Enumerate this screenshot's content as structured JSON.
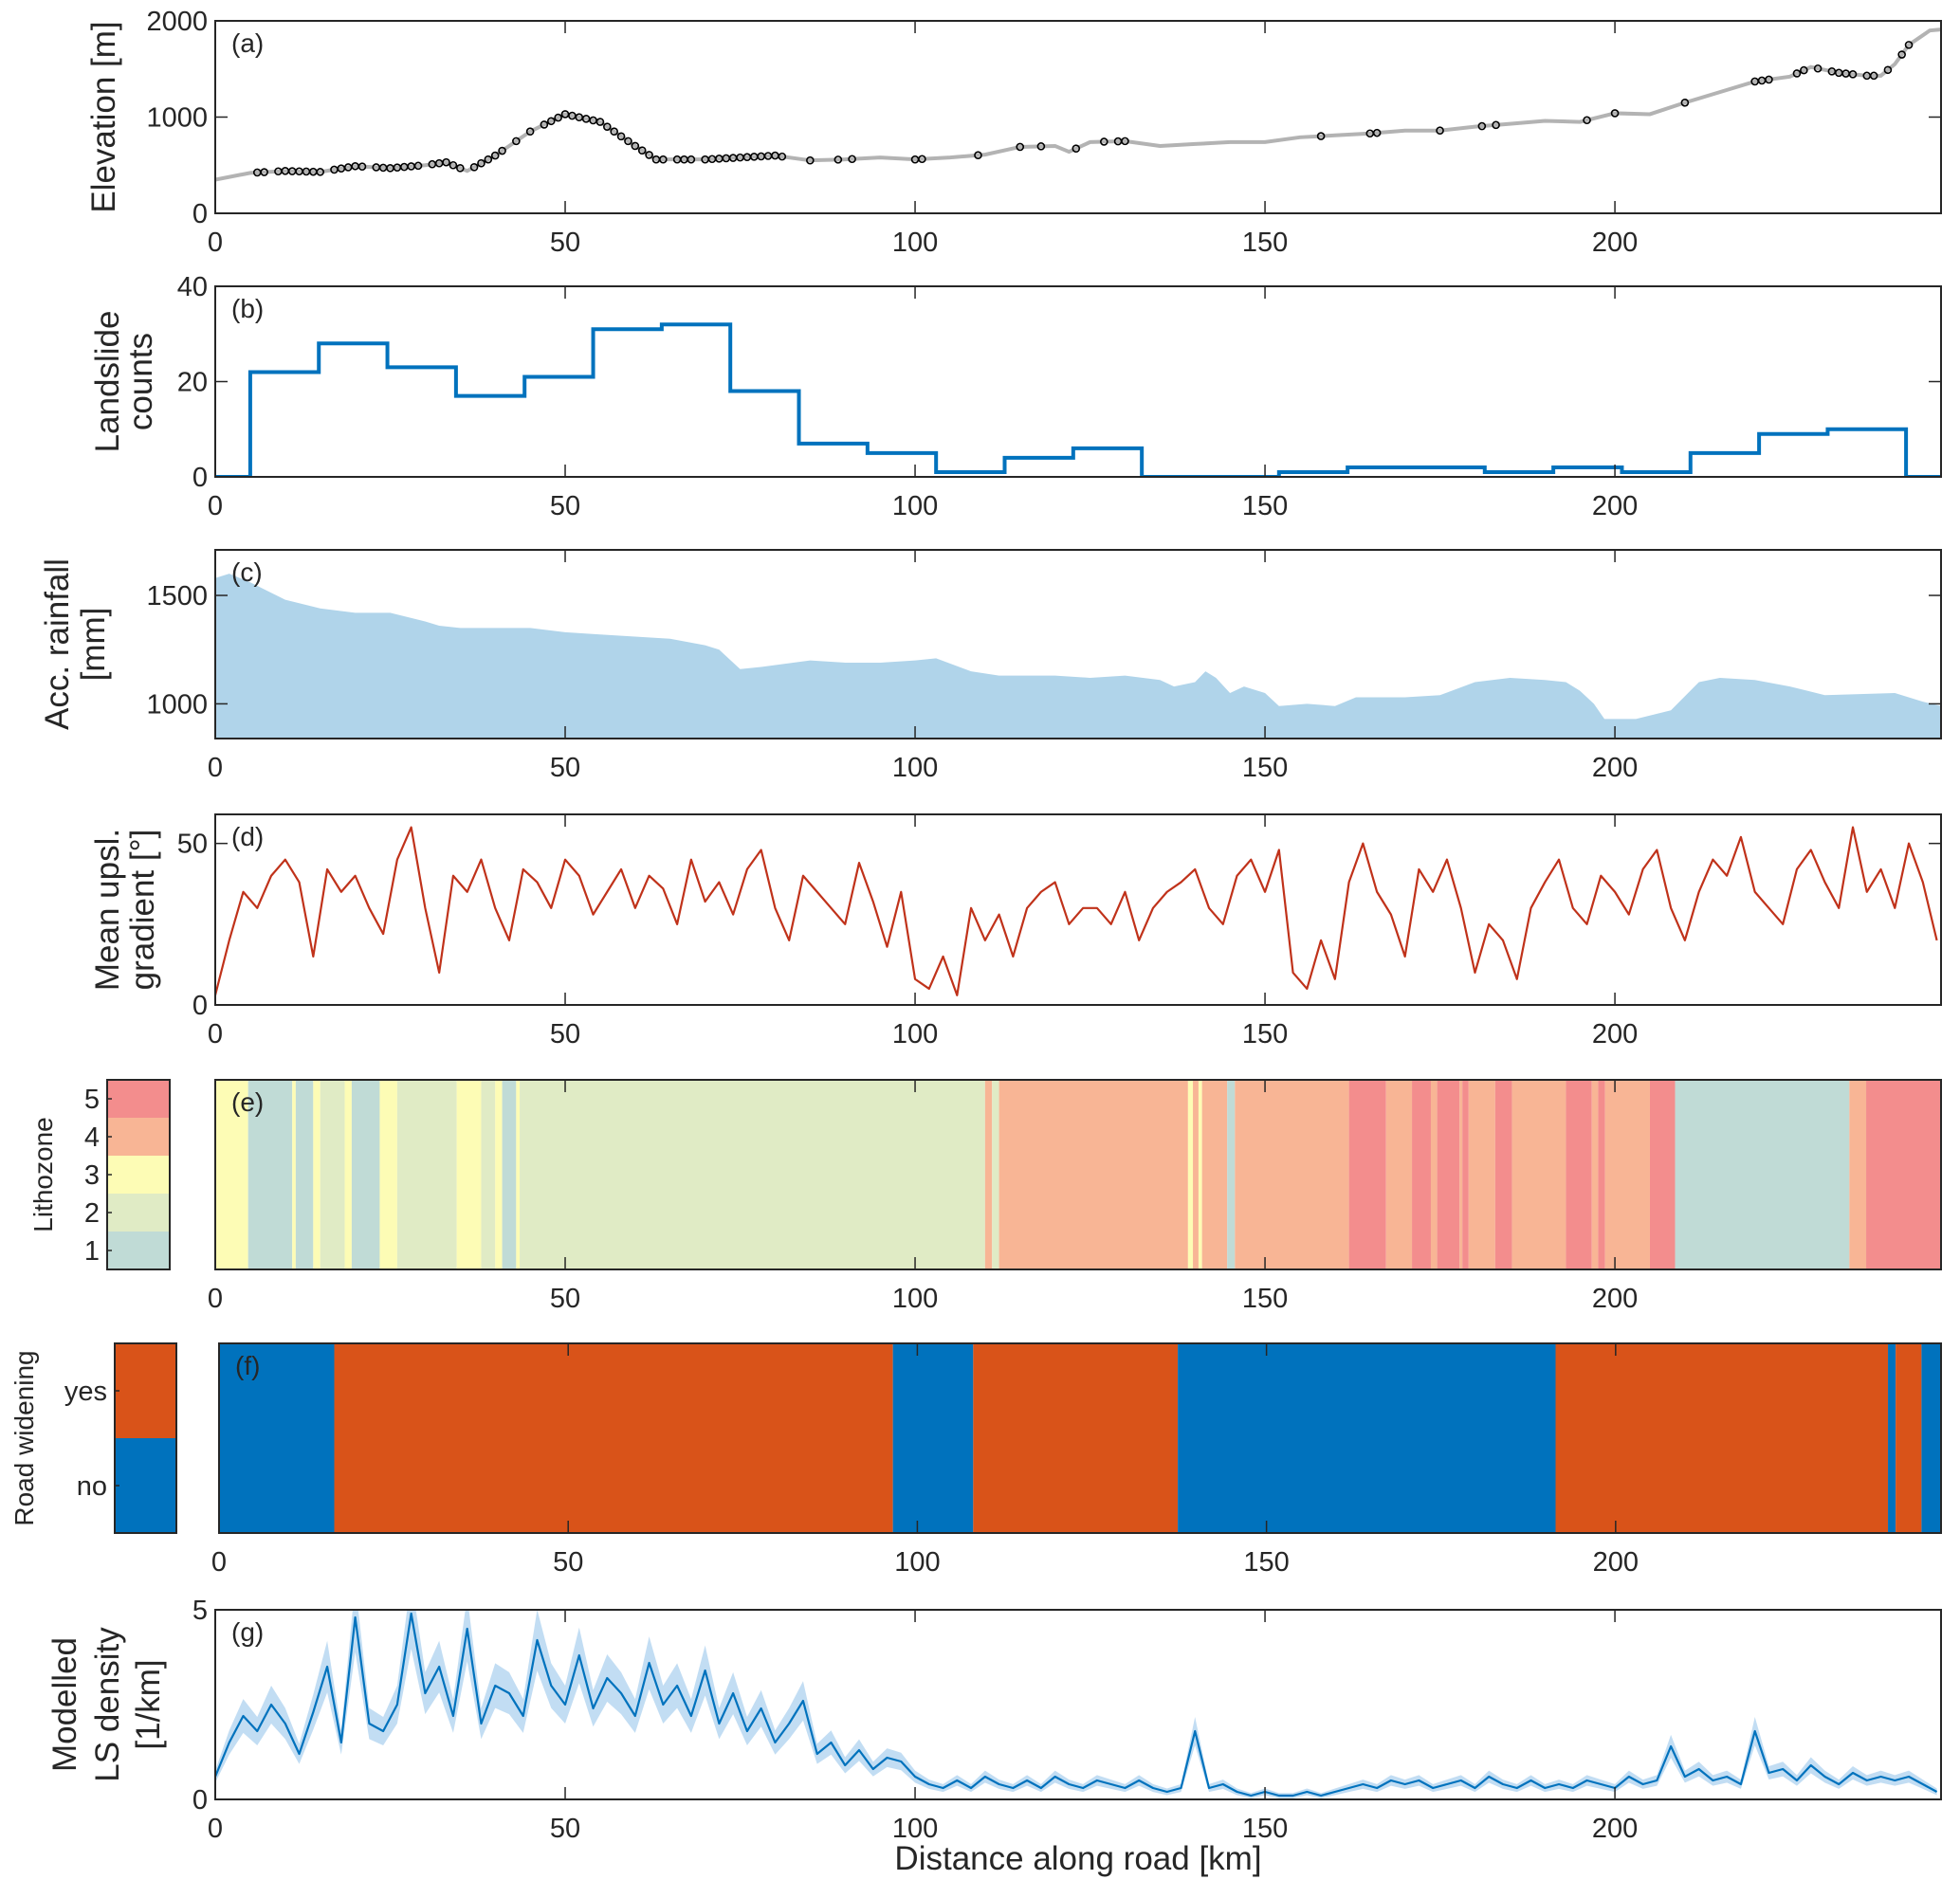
{
  "chart_data": [
    {
      "id": "a",
      "type": "line",
      "panel_label": "(a)",
      "ylabel": [
        "Elevation [m]"
      ],
      "ylim": [
        0,
        2000
      ],
      "yticks": [
        0,
        1000,
        2000
      ],
      "xlim": [
        0,
        246.6
      ],
      "xticks": [
        0,
        50,
        100,
        150,
        200
      ],
      "line_color": "#b3b3b3",
      "marker_color": "#000000",
      "elevation_profile": {
        "x": [
          0,
          5,
          10,
          15,
          20,
          25,
          30,
          33,
          36,
          40,
          45,
          50,
          55,
          60,
          63,
          70,
          80,
          85,
          90,
          95,
          100,
          105,
          110,
          115,
          120,
          122,
          125,
          130,
          135,
          140,
          145,
          150,
          155,
          160,
          165,
          170,
          175,
          180,
          185,
          190,
          195,
          200,
          205,
          210,
          215,
          220,
          225,
          228,
          232,
          236,
          238,
          240,
          242,
          245,
          246.6
        ],
        "y": [
          350,
          420,
          440,
          430,
          490,
          470,
          500,
          530,
          440,
          600,
          850,
          1030,
          950,
          700,
          560,
          560,
          600,
          550,
          560,
          580,
          560,
          580,
          610,
          690,
          700,
          640,
          740,
          750,
          700,
          720,
          740,
          740,
          790,
          810,
          830,
          860,
          860,
          900,
          930,
          960,
          950,
          1040,
          1030,
          1150,
          1260,
          1370,
          1420,
          1520,
          1460,
          1430,
          1430,
          1550,
          1750,
          1900,
          1910
        ]
      },
      "landslide_locations_km": [
        6,
        7,
        9,
        10,
        11,
        12,
        13,
        14,
        15,
        17,
        18,
        19,
        20,
        21,
        23,
        24,
        25,
        26,
        27,
        28,
        29,
        31,
        32,
        33,
        34,
        35,
        37,
        38,
        39,
        40,
        41,
        43,
        45,
        47,
        48,
        49,
        50,
        51,
        52,
        53,
        54,
        55,
        56,
        57,
        58,
        59,
        60,
        61,
        62,
        63,
        64,
        66,
        67,
        68,
        70,
        71,
        72,
        73,
        74,
        75,
        76,
        77,
        78,
        79,
        80,
        81,
        85,
        89,
        91,
        100,
        101,
        109,
        115,
        118,
        123,
        127,
        129,
        130,
        158,
        165,
        166,
        175,
        181,
        183,
        196,
        200,
        210,
        220,
        221,
        222,
        226,
        227,
        229,
        231,
        232,
        233,
        234,
        236,
        237,
        239,
        241,
        242
      ]
    },
    {
      "id": "b",
      "type": "step",
      "panel_label": "(b)",
      "ylabel": [
        "Landslide",
        "counts"
      ],
      "ylim": [
        0,
        40
      ],
      "yticks": [
        0,
        20,
        40
      ],
      "xlim": [
        0,
        246.6
      ],
      "xticks": [
        0,
        50,
        100,
        150,
        200
      ],
      "color": "#0072bd",
      "bin_edges": [
        0,
        5,
        14.8,
        24.6,
        34.4,
        44.2,
        54,
        63.8,
        73.6,
        83.4,
        93.2,
        103,
        112.8,
        122.6,
        132.4,
        142.2,
        152,
        161.8,
        171.6,
        181.4,
        191.2,
        201,
        210.8,
        220.6,
        230.4,
        241.6,
        246.6
      ],
      "counts": [
        0,
        22,
        28,
        23,
        17,
        21,
        31,
        32,
        18,
        7,
        5,
        1,
        4,
        6,
        0,
        0,
        1,
        2,
        2,
        1,
        2,
        1,
        5,
        9,
        10,
        0
      ]
    },
    {
      "id": "c",
      "type": "area",
      "panel_label": "(c)",
      "ylabel": [
        "Acc. rainfall",
        "[mm]"
      ],
      "ylim": [
        840,
        1710
      ],
      "yticks": [
        1000,
        1500
      ],
      "xlim": [
        0,
        246.6
      ],
      "xticks": [
        0,
        50,
        100,
        150,
        200
      ],
      "color": "#b0d4ea",
      "x": [
        0,
        2,
        5,
        10,
        15,
        20,
        25,
        30,
        32,
        35,
        45,
        50,
        55,
        60,
        65,
        70,
        72,
        75,
        78,
        85,
        90,
        95,
        100,
        103,
        108,
        112,
        120,
        125,
        130,
        135,
        137,
        140,
        141.5,
        143,
        145,
        147,
        150,
        152,
        156,
        160,
        163,
        170,
        175,
        180,
        185,
        190,
        193,
        195,
        197,
        198.5,
        203,
        208,
        212,
        215,
        220,
        225,
        230,
        240,
        244,
        246.6
      ],
      "y": [
        1580,
        1600,
        1560,
        1480,
        1440,
        1420,
        1420,
        1380,
        1360,
        1350,
        1350,
        1330,
        1320,
        1310,
        1300,
        1270,
        1250,
        1160,
        1170,
        1200,
        1190,
        1190,
        1200,
        1210,
        1150,
        1130,
        1130,
        1120,
        1130,
        1110,
        1080,
        1100,
        1150,
        1120,
        1050,
        1080,
        1050,
        990,
        1000,
        990,
        1030,
        1030,
        1040,
        1100,
        1120,
        1110,
        1100,
        1060,
        1000,
        930,
        930,
        970,
        1100,
        1120,
        1110,
        1080,
        1040,
        1050,
        1010,
        990
      ]
    },
    {
      "id": "d",
      "type": "line",
      "panel_label": "(d)",
      "ylabel": [
        "Mean upsl.",
        "gradient [°]"
      ],
      "ylim": [
        0,
        59
      ],
      "yticks": [
        0,
        50
      ],
      "xlim": [
        0,
        246.6
      ],
      "xticks": [
        0,
        50,
        100,
        150,
        200
      ],
      "color": "#c0321a",
      "x_step_km": 2,
      "values": [
        3,
        20,
        35,
        30,
        40,
        45,
        38,
        15,
        42,
        35,
        40,
        30,
        22,
        45,
        55,
        30,
        10,
        40,
        35,
        45,
        30,
        20,
        42,
        38,
        30,
        45,
        40,
        28,
        35,
        42,
        30,
        40,
        36,
        25,
        45,
        32,
        38,
        28,
        42,
        48,
        30,
        20,
        40,
        35,
        30,
        25,
        44,
        32,
        18,
        35,
        8,
        5,
        15,
        3,
        30,
        20,
        28,
        15,
        30,
        35,
        38,
        25,
        30,
        30,
        25,
        35,
        20,
        30,
        35,
        38,
        42,
        30,
        25,
        40,
        45,
        35,
        48,
        10,
        5,
        20,
        8,
        38,
        50,
        35,
        28,
        15,
        42,
        35,
        45,
        30,
        10,
        25,
        20,
        8,
        30,
        38,
        45,
        30,
        25,
        40,
        35,
        28,
        42,
        48,
        30,
        20,
        35,
        45,
        40,
        52,
        35,
        30,
        25,
        42,
        48,
        38,
        30,
        55,
        35,
        42,
        30,
        50,
        38,
        20
      ]
    },
    {
      "id": "e",
      "type": "categorical_strip",
      "panel_label": "(e)",
      "ylabel": [
        "Lithozone"
      ],
      "categories": [
        "1",
        "2",
        "3",
        "4",
        "5"
      ],
      "category_colors": {
        "1": "#c0dbd6",
        "2": "#e0ebc5",
        "3": "#fdfcb5",
        "4": "#f8b595",
        "5": "#f38d8d"
      },
      "xlim": [
        0,
        246.6
      ],
      "xticks": [
        0,
        50,
        100,
        150,
        200
      ],
      "segments": [
        [
          0,
          4.7,
          3
        ],
        [
          4.7,
          11,
          1
        ],
        [
          11,
          11.5,
          3
        ],
        [
          11.5,
          14,
          1
        ],
        [
          14,
          15,
          3
        ],
        [
          15,
          18.5,
          2
        ],
        [
          18.5,
          19.5,
          3
        ],
        [
          19.5,
          23.5,
          1
        ],
        [
          23.5,
          26,
          3
        ],
        [
          26,
          34.5,
          2
        ],
        [
          34.5,
          38,
          3
        ],
        [
          38,
          40,
          2
        ],
        [
          40,
          41,
          3
        ],
        [
          41,
          43,
          1
        ],
        [
          43,
          43.5,
          3
        ],
        [
          43.5,
          110,
          2
        ],
        [
          110,
          111,
          4
        ],
        [
          111,
          112,
          2
        ],
        [
          112,
          139,
          4
        ],
        [
          139,
          139.7,
          3
        ],
        [
          139.7,
          140.5,
          4
        ],
        [
          140.5,
          141,
          3
        ],
        [
          141,
          144.6,
          4
        ],
        [
          144.6,
          145.7,
          1
        ],
        [
          145.7,
          162,
          4
        ],
        [
          162,
          167.3,
          5
        ],
        [
          167.3,
          171,
          4
        ],
        [
          171,
          173.7,
          5
        ],
        [
          173.7,
          174.6,
          4
        ],
        [
          174.6,
          177.8,
          5
        ],
        [
          177.8,
          178.2,
          4
        ],
        [
          178.2,
          179.1,
          5
        ],
        [
          179.1,
          182.9,
          4
        ],
        [
          182.9,
          185.3,
          5
        ],
        [
          185.3,
          193,
          4
        ],
        [
          193,
          196.7,
          5
        ],
        [
          196.7,
          197.6,
          4
        ],
        [
          197.6,
          198.6,
          5
        ],
        [
          198.6,
          205,
          4
        ],
        [
          205,
          208.6,
          5
        ],
        [
          208.6,
          233.5,
          1
        ],
        [
          233.5,
          235.9,
          4
        ],
        [
          235.9,
          246.6,
          5
        ]
      ]
    },
    {
      "id": "f",
      "type": "categorical_strip",
      "panel_label": "(f)",
      "ylabel": [
        "Road widening"
      ],
      "categories": [
        "no",
        "yes"
      ],
      "category_colors": {
        "no": "#0072bd",
        "yes": "#d95319"
      },
      "xlim": [
        0,
        246.6
      ],
      "xticks": [
        0,
        50,
        100,
        150,
        200
      ],
      "segments": [
        [
          0,
          16.5,
          "no"
        ],
        [
          16.5,
          96.5,
          "yes"
        ],
        [
          96.5,
          108,
          "no"
        ],
        [
          108,
          137.3,
          "yes"
        ],
        [
          137.3,
          191.4,
          "no"
        ],
        [
          191.4,
          239,
          "yes"
        ],
        [
          239,
          240.1,
          "no"
        ],
        [
          240.1,
          243.8,
          "yes"
        ],
        [
          243.8,
          246.6,
          "no"
        ]
      ]
    },
    {
      "id": "g",
      "type": "line",
      "panel_label": "(g)",
      "ylabel": [
        "Modelled",
        "LS density",
        "[1/km]"
      ],
      "ylim": [
        0,
        5
      ],
      "yticks": [
        0,
        5
      ],
      "xlim": [
        0,
        246.6
      ],
      "xticks": [
        0,
        50,
        100,
        150,
        200
      ],
      "xlabel": "Distance along road [km]",
      "color": "#0072bd",
      "band_color": "#a8cfee",
      "x_step_km": 2,
      "values": [
        0.6,
        1.5,
        2.2,
        1.8,
        2.5,
        2.0,
        1.2,
        2.3,
        3.5,
        1.5,
        4.8,
        2.0,
        1.8,
        2.5,
        4.9,
        2.8,
        3.5,
        2.2,
        4.5,
        2.0,
        3.0,
        2.8,
        2.2,
        4.2,
        3.0,
        2.5,
        3.8,
        2.4,
        3.2,
        2.8,
        2.2,
        3.6,
        2.5,
        3.0,
        2.2,
        3.4,
        2.0,
        2.8,
        1.8,
        2.4,
        1.5,
        2.0,
        2.6,
        1.2,
        1.5,
        0.9,
        1.3,
        0.8,
        1.1,
        1.0,
        0.6,
        0.4,
        0.3,
        0.5,
        0.3,
        0.6,
        0.4,
        0.3,
        0.5,
        0.3,
        0.6,
        0.4,
        0.3,
        0.5,
        0.4,
        0.3,
        0.5,
        0.3,
        0.2,
        0.3,
        1.8,
        0.3,
        0.4,
        0.2,
        0.1,
        0.2,
        0.1,
        0.1,
        0.2,
        0.1,
        0.2,
        0.3,
        0.4,
        0.3,
        0.5,
        0.4,
        0.5,
        0.3,
        0.4,
        0.5,
        0.3,
        0.6,
        0.4,
        0.3,
        0.5,
        0.3,
        0.4,
        0.3,
        0.5,
        0.4,
        0.3,
        0.6,
        0.4,
        0.5,
        1.4,
        0.6,
        0.8,
        0.5,
        0.6,
        0.4,
        1.8,
        0.7,
        0.8,
        0.5,
        0.9,
        0.6,
        0.4,
        0.7,
        0.5,
        0.6,
        0.5,
        0.6,
        0.4,
        0.2
      ]
    }
  ]
}
